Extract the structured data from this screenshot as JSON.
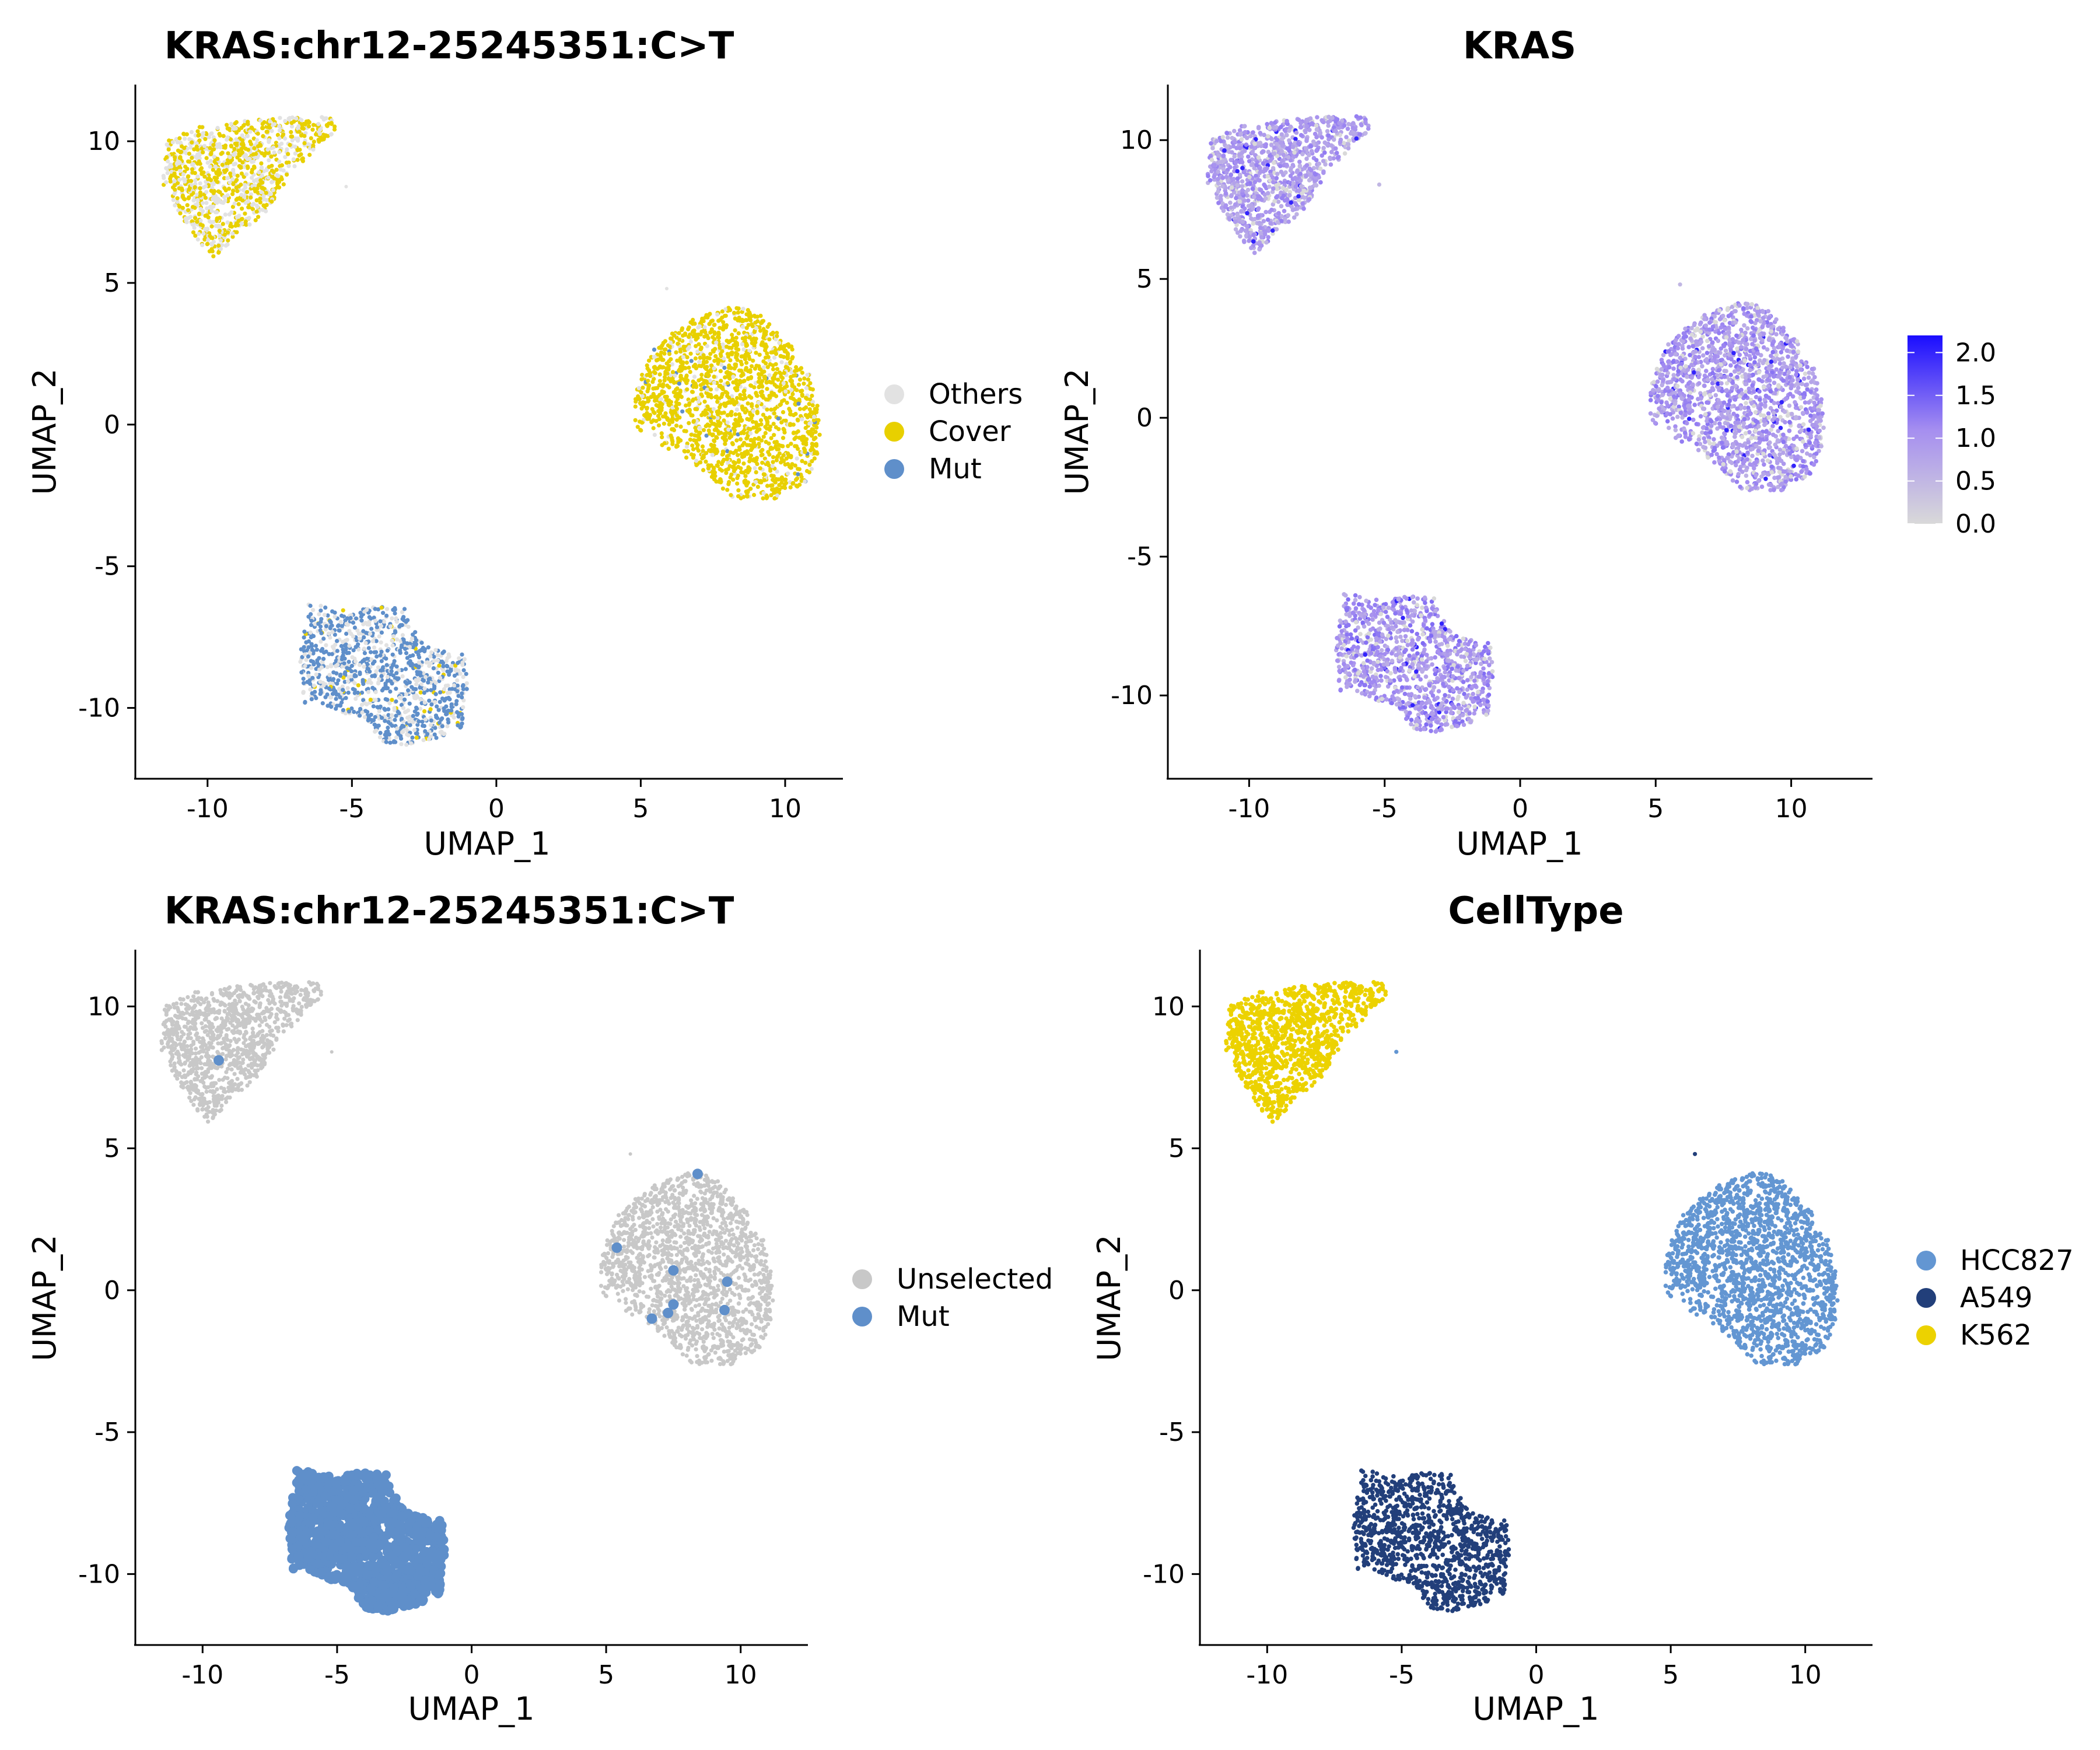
{
  "colors": {
    "others": "#e2e2e2",
    "cover": "#e8d000",
    "mut": "#5f8fca",
    "unselected": "#c8c8c8",
    "hcc827": "#6396d2",
    "a549": "#223f7a",
    "k562": "#ecd200",
    "expr_low": "#d9d9d9",
    "expr_high": "#1a0dff"
  },
  "chart_data": [
    {
      "type": "scatter",
      "title": "KRAS:chr12-25245351:C>T",
      "xlabel": "UMAP_1",
      "ylabel": "UMAP_2",
      "xlim": [
        -12.5,
        12
      ],
      "ylim": [
        -12.5,
        12
      ],
      "xticks": [
        -10,
        -5,
        0,
        5,
        10
      ],
      "yticks": [
        -10,
        -5,
        0,
        5,
        10
      ],
      "legend": {
        "position": "right",
        "entries": [
          "Others",
          "Cover",
          "Mut"
        ]
      },
      "grid": false,
      "clusters": [
        {
          "name": "K562",
          "center": [
            -8.5,
            9.2
          ],
          "composition": {
            "Others": 0.45,
            "Cover": 0.55
          }
        },
        {
          "name": "HCC827",
          "center": [
            8.0,
            0.5
          ],
          "composition": {
            "Others": 0.1,
            "Cover": 0.88,
            "Mut": 0.02
          }
        },
        {
          "name": "A549",
          "center": [
            -3.8,
            -8.8
          ],
          "composition": {
            "Others": 0.35,
            "Cover": 0.03,
            "Mut": 0.62
          }
        }
      ]
    },
    {
      "type": "scatter",
      "title": "KRAS",
      "xlabel": "UMAP_1",
      "ylabel": "UMAP_2",
      "xlim": [
        -13,
        13
      ],
      "ylim": [
        -13,
        12
      ],
      "xticks": [
        -10,
        -5,
        0,
        5,
        10
      ],
      "yticks": [
        -10,
        -5,
        0,
        5,
        10
      ],
      "colorbar": {
        "min": 0.0,
        "max": 2.2,
        "ticks": [
          "0.0",
          "0.5",
          "1.0",
          "1.5",
          "2.0"
        ],
        "position": "right"
      },
      "grid": false,
      "clusters": [
        {
          "name": "K562",
          "center": [
            -8.5,
            9.2
          ],
          "mean_expression": 0.9
        },
        {
          "name": "HCC827",
          "center": [
            8.0,
            0.5
          ],
          "mean_expression": 0.95
        },
        {
          "name": "A549",
          "center": [
            -3.8,
            -8.8
          ],
          "mean_expression": 1.0
        }
      ]
    },
    {
      "type": "scatter",
      "title": "KRAS:chr12-25245351:C>T",
      "xlabel": "UMAP_1",
      "ylabel": "UMAP_2",
      "xlim": [
        -12.5,
        12.5
      ],
      "ylim": [
        -12.5,
        12
      ],
      "xticks": [
        -10,
        -5,
        0,
        5,
        10
      ],
      "yticks": [
        -10,
        -5,
        0,
        5,
        10
      ],
      "legend": {
        "position": "right",
        "entries": [
          "Unselected",
          "Mut"
        ]
      },
      "grid": false,
      "clusters": [
        {
          "name": "K562",
          "center": [
            -8.5,
            9.2
          ],
          "composition": {
            "Unselected": 1.0
          }
        },
        {
          "name": "HCC827",
          "center": [
            8.0,
            0.5
          ],
          "composition": {
            "Unselected": 1.0
          }
        },
        {
          "name": "A549",
          "center": [
            -3.8,
            -8.8
          ],
          "composition": {
            "Mut": 0.97,
            "Unselected": 0.03
          }
        }
      ],
      "highlighted_points": [
        {
          "x": -9.4,
          "y": 8.1
        },
        {
          "x": 8.4,
          "y": 4.1
        },
        {
          "x": 5.4,
          "y": 1.5
        },
        {
          "x": 7.5,
          "y": 0.7
        },
        {
          "x": 9.5,
          "y": 0.3
        },
        {
          "x": 7.5,
          "y": -0.5
        },
        {
          "x": 7.3,
          "y": -0.8
        },
        {
          "x": 6.7,
          "y": -1.0
        },
        {
          "x": 9.4,
          "y": -0.7
        },
        {
          "x": -6.2,
          "y": -6.5
        },
        {
          "x": -5.5,
          "y": -6.6
        }
      ]
    },
    {
      "type": "scatter",
      "title": "CellType",
      "xlabel": "UMAP_1",
      "ylabel": "UMAP_2",
      "xlim": [
        -12.5,
        12.5
      ],
      "ylim": [
        -12.5,
        12
      ],
      "xticks": [
        -10,
        -5,
        0,
        5,
        10
      ],
      "yticks": [
        -10,
        -5,
        0,
        5,
        10
      ],
      "legend": {
        "position": "right",
        "entries": [
          "HCC827",
          "A549",
          "K562"
        ]
      },
      "grid": false,
      "clusters": [
        {
          "name": "K562",
          "center": [
            -8.5,
            9.2
          ]
        },
        {
          "name": "HCC827",
          "center": [
            8.0,
            0.5
          ]
        },
        {
          "name": "A549",
          "center": [
            -3.8,
            -8.8
          ]
        }
      ]
    }
  ]
}
